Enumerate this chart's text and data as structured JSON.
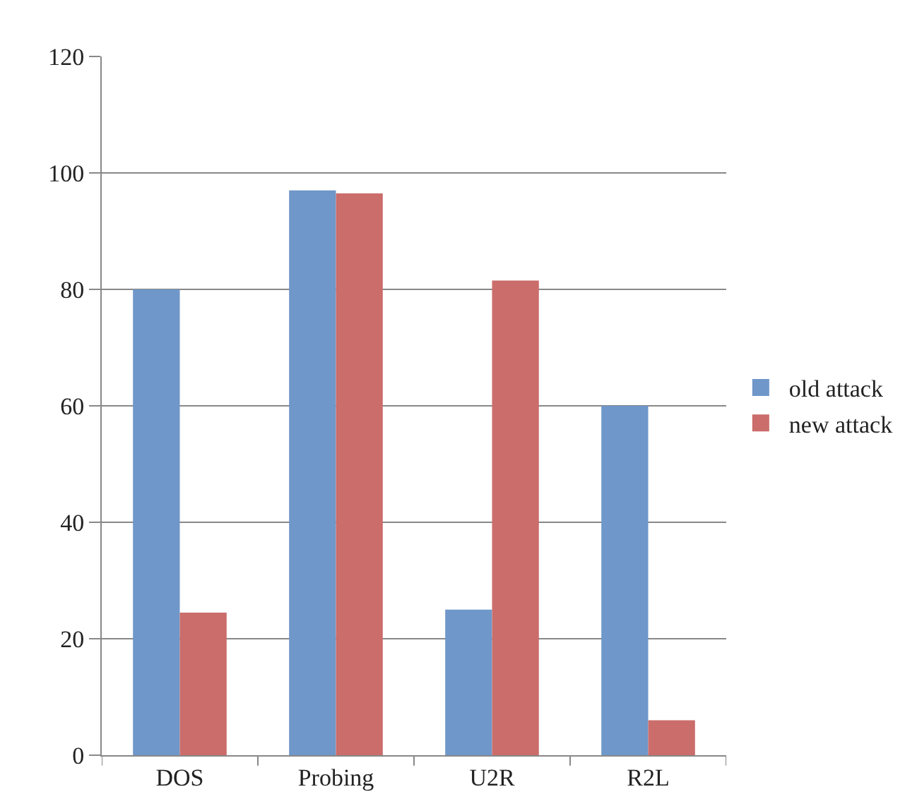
{
  "chart_data": {
    "type": "bar",
    "categories": [
      "DOS",
      "Probing",
      "U2R",
      "R2L"
    ],
    "series": [
      {
        "name": "old attack",
        "color": "#6f97c9",
        "values": [
          80,
          97,
          25,
          60
        ]
      },
      {
        "name": "new attack",
        "color": "#cb6d6b",
        "values": [
          24.5,
          96.5,
          81.5,
          6
        ]
      }
    ],
    "ylim": [
      0,
      120
    ],
    "yticks": [
      0,
      20,
      40,
      60,
      80,
      100,
      120
    ],
    "grid": "y",
    "legend": "right"
  }
}
